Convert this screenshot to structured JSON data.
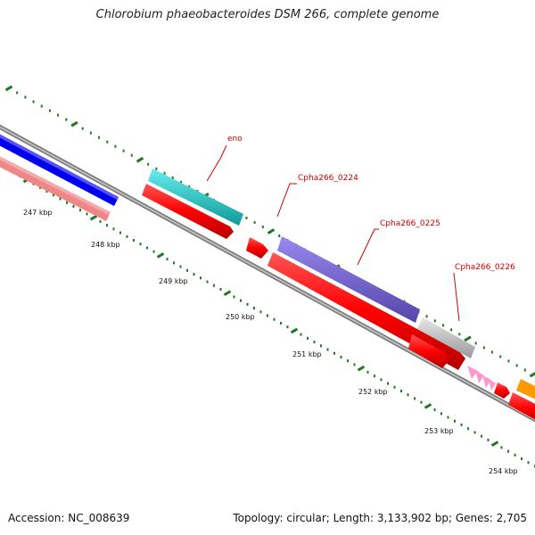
{
  "title": "Chlorobium phaeobacteroides DSM 266, complete genome",
  "footer": {
    "accession": "Accession: NC_008639",
    "summary": "Topology: circular; Length: 3,133,902 bp; Genes: 2,705"
  },
  "ticks": [
    {
      "label": "247 kbp"
    },
    {
      "label": "248 kbp"
    },
    {
      "label": "249 kbp"
    },
    {
      "label": "250 kbp"
    },
    {
      "label": "251 kbp"
    },
    {
      "label": "252 kbp"
    },
    {
      "label": "253 kbp"
    },
    {
      "label": "254 kbp"
    }
  ],
  "gene_labels": [
    {
      "name": "eno"
    },
    {
      "name": "Cpha266_0224"
    },
    {
      "name": "Cpha266_0225"
    },
    {
      "name": "Cpha266_0226"
    }
  ],
  "colors": {
    "backbone": "#8c8c8c",
    "cds": "#ff0000",
    "eno": "#22cccc",
    "cpha0225": "#7766cc",
    "cpha0226": "#bbbbbb",
    "blue_feature": "#0000ee",
    "pink_feature": "#ee8888",
    "orange_feature": "#ff9900",
    "small_pink": "#ff99cc",
    "tick": "#227722",
    "label": "#d00000"
  }
}
